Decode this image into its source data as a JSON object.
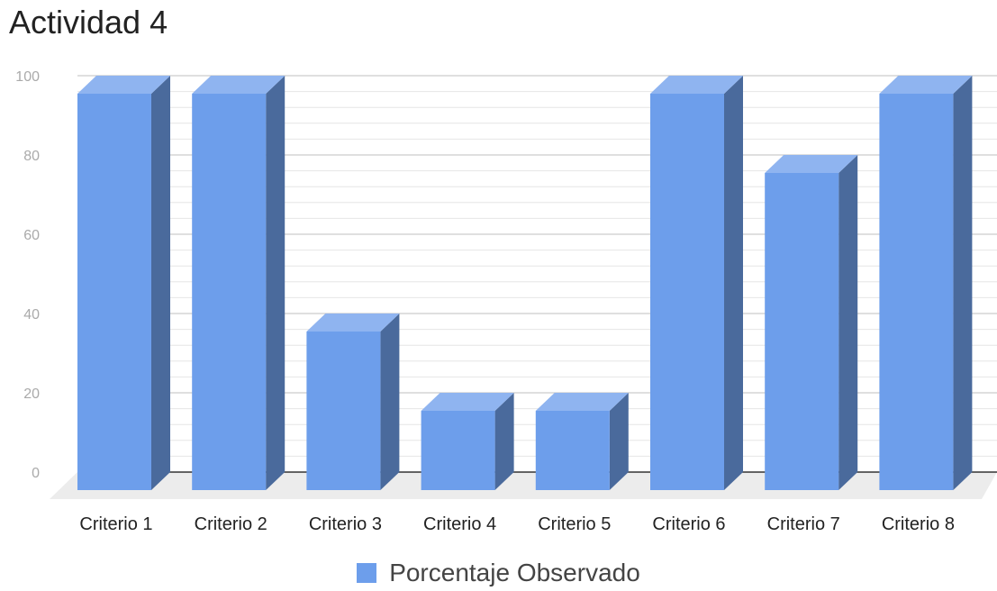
{
  "chart_data": {
    "type": "bar",
    "title": "Actividad 4",
    "categories": [
      "Criterio 1",
      "Criterio 2",
      "Criterio 3",
      "Criterio 4",
      "Criterio 5",
      "Criterio 6",
      "Criterio 7",
      "Criterio 8"
    ],
    "series": [
      {
        "name": "Porcentaje Observado",
        "values": [
          100,
          100,
          40,
          20,
          20,
          100,
          80,
          100
        ]
      }
    ],
    "ylim": [
      0,
      100
    ],
    "yticks": [
      0,
      20,
      40,
      60,
      80,
      100
    ],
    "grid": true,
    "legend": "bottom",
    "colors": {
      "front": "#6d9eeb",
      "side": "#4a6a9c",
      "top": "#8fb4f0",
      "floor": "#ececec",
      "grid_major": "#cccccc",
      "grid_minor": "#e6e6e6",
      "axis": "#333333"
    }
  }
}
